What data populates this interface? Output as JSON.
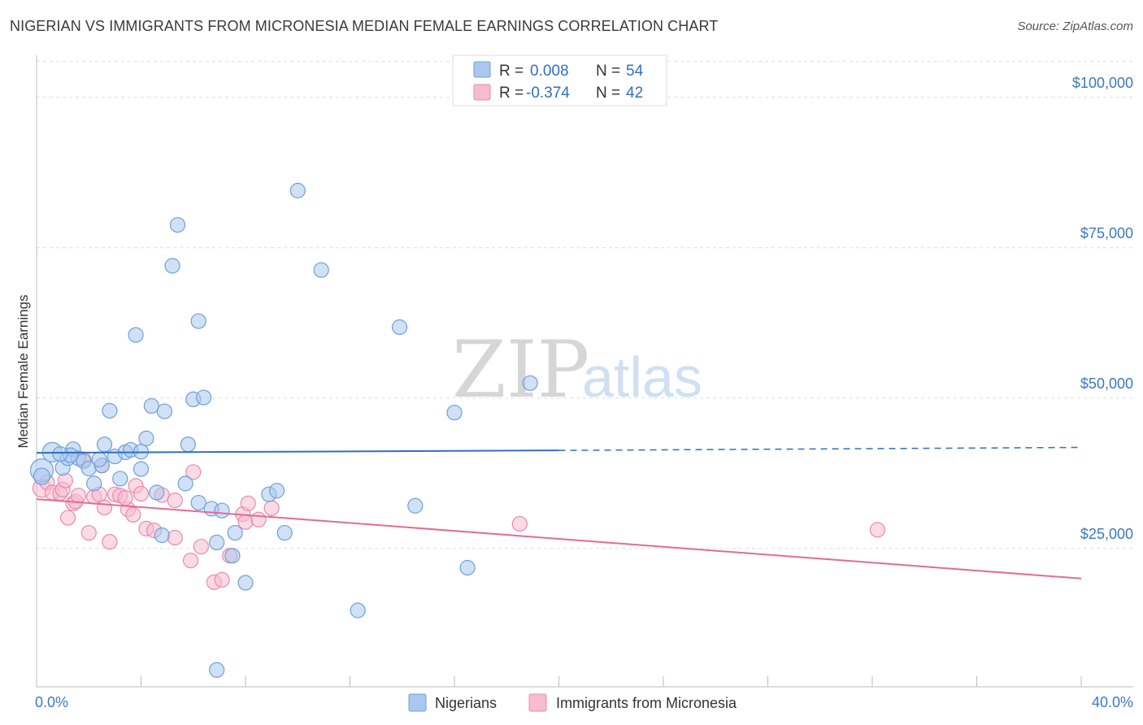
{
  "header": {
    "title": "NIGERIAN VS IMMIGRANTS FROM MICRONESIA MEDIAN FEMALE EARNINGS CORRELATION CHART",
    "source": "Source: ZipAtlas.com"
  },
  "watermark": {
    "zip": "ZIP",
    "atlas": "atlas"
  },
  "colors": {
    "blue_fill": "#a9c8ef",
    "blue_stroke": "#6f9fd8",
    "blue_line": "#2f6fc4",
    "pink_fill": "#f6bcd0",
    "pink_stroke": "#e98aab",
    "pink_line": "#e46b95",
    "grid": "#dddddd",
    "tick_text": "#3b78c4"
  },
  "legend": {
    "rows": [
      {
        "r_label": "R =",
        "r_value": "0.008",
        "n_label": "N =",
        "n_value": "54"
      },
      {
        "r_label": "R =",
        "r_value": "-0.374",
        "n_label": "N =",
        "n_value": "42"
      }
    ]
  },
  "bottom_legend": {
    "items": [
      {
        "label": "Nigerians"
      },
      {
        "label": "Immigrants from Micronesia"
      }
    ]
  },
  "chart_data": {
    "type": "scatter",
    "title": "NIGERIAN VS IMMIGRANTS FROM MICRONESIA MEDIAN FEMALE EARNINGS CORRELATION CHART",
    "xlabel": "",
    "ylabel": "Median Female Earnings",
    "xlim": [
      0,
      40
    ],
    "ylim": [
      2000,
      107000
    ],
    "x_tick_labels": [
      "0.0%",
      "40.0%"
    ],
    "y_ticks": [
      25000,
      50000,
      75000,
      100000
    ],
    "y_tick_labels": [
      "$25,000",
      "$50,000",
      "$75,000",
      "$100,000"
    ],
    "grid": true,
    "series": [
      {
        "name": "Nigerians",
        "color": "#a9c8ef",
        "r": 0.008,
        "n": 54,
        "trend": {
          "x0": 0,
          "y0": 40900,
          "x1": 20,
          "y1": 41300,
          "dash_to_x": 40,
          "dash_to_y": 41800
        },
        "points": [
          [
            0.2,
            38000,
            14
          ],
          [
            0.2,
            37000,
            10
          ],
          [
            0.6,
            41000,
            12
          ],
          [
            1.0,
            38400,
            9
          ],
          [
            1.2,
            40000,
            9
          ],
          [
            1.4,
            41500,
            9
          ],
          [
            1.6,
            40000,
            9
          ],
          [
            1.8,
            39500,
            9
          ],
          [
            2.0,
            38300,
            9
          ],
          [
            2.2,
            35800,
            9
          ],
          [
            2.5,
            38800,
            9
          ],
          [
            2.6,
            42300,
            9
          ],
          [
            2.8,
            47900,
            9
          ],
          [
            3.0,
            40300,
            9
          ],
          [
            3.2,
            36600,
            9
          ],
          [
            3.4,
            41000,
            9
          ],
          [
            3.6,
            41400,
            9
          ],
          [
            3.8,
            60500,
            9
          ],
          [
            4.0,
            41100,
            9
          ],
          [
            4.0,
            38200,
            9
          ],
          [
            4.2,
            43300,
            9
          ],
          [
            4.4,
            48700,
            9
          ],
          [
            4.6,
            34300,
            9
          ],
          [
            4.8,
            27200,
            9
          ],
          [
            4.9,
            47800,
            9
          ],
          [
            5.2,
            72000,
            9
          ],
          [
            5.4,
            78800,
            9
          ],
          [
            5.7,
            35800,
            9
          ],
          [
            5.8,
            42300,
            9
          ],
          [
            6.0,
            49800,
            9
          ],
          [
            6.2,
            32600,
            9
          ],
          [
            6.2,
            62800,
            9
          ],
          [
            6.4,
            50100,
            9
          ],
          [
            6.7,
            31600,
            9
          ],
          [
            6.9,
            26000,
            9
          ],
          [
            6.9,
            4800,
            9
          ],
          [
            7.1,
            31300,
            9
          ],
          [
            7.5,
            23800,
            9
          ],
          [
            7.6,
            27600,
            9
          ],
          [
            8.0,
            19300,
            9
          ],
          [
            8.9,
            34000,
            9
          ],
          [
            9.2,
            34600,
            9
          ],
          [
            9.5,
            27600,
            9
          ],
          [
            10.0,
            84500,
            9
          ],
          [
            10.9,
            71300,
            9
          ],
          [
            12.3,
            14700,
            9
          ],
          [
            13.9,
            61800,
            9
          ],
          [
            14.5,
            32100,
            9
          ],
          [
            16.0,
            47600,
            9
          ],
          [
            16.5,
            21800,
            9
          ],
          [
            18.9,
            52500,
            9
          ],
          [
            1.3,
            40500,
            9
          ],
          [
            2.4,
            39800,
            9
          ],
          [
            0.9,
            40700,
            9
          ]
        ]
      },
      {
        "name": "Immigrants from Micronesia",
        "color": "#f6bcd0",
        "r": -0.374,
        "n": 42,
        "trend": {
          "x0": 0,
          "y0": 33200,
          "x1": 40,
          "y1": 20000
        },
        "points": [
          [
            0.2,
            35000,
            11
          ],
          [
            0.4,
            36000,
            9
          ],
          [
            0.6,
            34300,
            9
          ],
          [
            0.9,
            34200,
            9
          ],
          [
            1.0,
            34800,
            9
          ],
          [
            1.1,
            36300,
            9
          ],
          [
            1.2,
            30100,
            9
          ],
          [
            1.4,
            32500,
            9
          ],
          [
            1.5,
            32800,
            9
          ],
          [
            1.6,
            33800,
            9
          ],
          [
            1.8,
            39800,
            9
          ],
          [
            2.0,
            27600,
            9
          ],
          [
            2.2,
            33600,
            9
          ],
          [
            2.4,
            34000,
            9
          ],
          [
            2.5,
            38800,
            9
          ],
          [
            2.6,
            31800,
            9
          ],
          [
            2.8,
            26100,
            9
          ],
          [
            3.0,
            34000,
            9
          ],
          [
            3.2,
            33800,
            9
          ],
          [
            3.5,
            31500,
            9
          ],
          [
            3.7,
            30600,
            9
          ],
          [
            3.8,
            35400,
            9
          ],
          [
            4.0,
            34100,
            9
          ],
          [
            4.2,
            28300,
            9
          ],
          [
            4.5,
            28000,
            9
          ],
          [
            4.8,
            33900,
            9
          ],
          [
            5.3,
            26800,
            9
          ],
          [
            5.3,
            33000,
            9
          ],
          [
            5.9,
            23000,
            9
          ],
          [
            6.0,
            37700,
            9
          ],
          [
            6.3,
            25300,
            9
          ],
          [
            6.8,
            19400,
            9
          ],
          [
            7.1,
            19800,
            9
          ],
          [
            7.4,
            23800,
            9
          ],
          [
            7.9,
            30700,
            9
          ],
          [
            8.0,
            29400,
            9
          ],
          [
            8.1,
            32500,
            9
          ],
          [
            8.5,
            29800,
            9
          ],
          [
            9.0,
            31700,
            9
          ],
          [
            18.5,
            29100,
            9
          ],
          [
            32.2,
            28100,
            9
          ],
          [
            3.4,
            33400,
            9
          ]
        ]
      }
    ]
  }
}
